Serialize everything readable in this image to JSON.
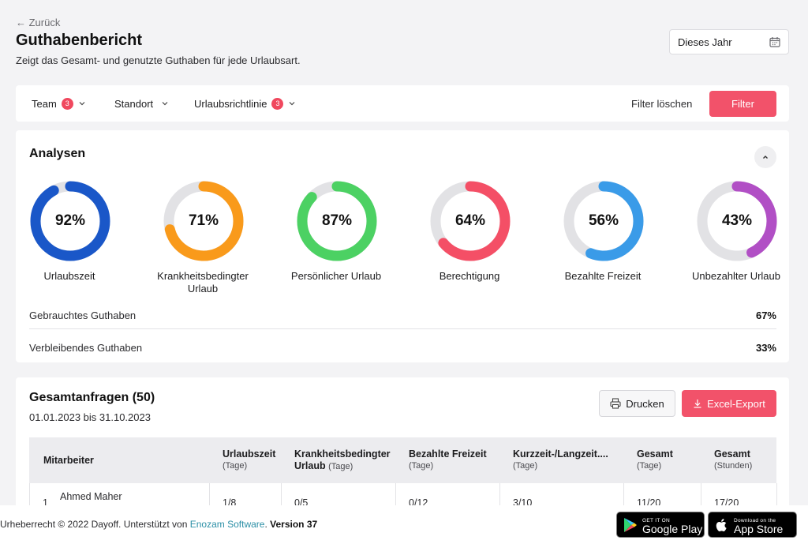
{
  "header": {
    "back_label": "← Zurück",
    "title": "Guthabenbericht",
    "subtitle": "Zeigt das Gesamt- und genutzte Guthaben für jede Urlaubsart.",
    "period_select": "Dieses Jahr"
  },
  "filters": {
    "team": {
      "label": "Team",
      "count": "3"
    },
    "standort": {
      "label": "Standort"
    },
    "policy": {
      "label": "Urlaubsrichtlinie",
      "count": "3"
    },
    "clear_label": "Filter löschen",
    "apply_label": "Filter"
  },
  "analytics": {
    "title": "Analysen",
    "donuts": [
      {
        "pct_value": 92,
        "pct": "92%",
        "label": "Urlaubszeit",
        "color": "#1a57c8"
      },
      {
        "pct_value": 71,
        "pct": "71%",
        "label": "Krankheitsbedingter Urlaub",
        "color": "#f99a1b"
      },
      {
        "pct_value": 87,
        "pct": "87%",
        "label": "Persönlicher Urlaub",
        "color": "#4cd163"
      },
      {
        "pct_value": 64,
        "pct": "64%",
        "label": "Berechtigung",
        "color": "#f44f66"
      },
      {
        "pct_value": 56,
        "pct": "56%",
        "label": "Bezahlte Freizeit",
        "color": "#3a9be8"
      },
      {
        "pct_value": 43,
        "pct": "43%",
        "label": "Unbezahlter Urlaub",
        "color": "#b14fc5"
      }
    ],
    "track_color": "#e2e2e5",
    "used_label": "Gebrauchtes Guthaben",
    "used_value": "67%",
    "remaining_label": "Verbleibendes Guthaben",
    "remaining_value": "33%"
  },
  "requests": {
    "title": "Gesamtanfragen (50)",
    "date_range": "01.01.2023 bis 31.10.2023",
    "print_label": "Drucken",
    "export_label": "Excel-Export",
    "columns": [
      {
        "label": "Mitarbeiter",
        "sub": ""
      },
      {
        "label": "Urlaubszeit",
        "sub": "(Tage)"
      },
      {
        "label": "Krankheitsbedingter Urlaub",
        "sub": "(Tage)"
      },
      {
        "label": "Bezahlte Freizeit",
        "sub": "(Tage)"
      },
      {
        "label": "Kurzzeit-/Langzeit....",
        "sub": "(Tage)"
      },
      {
        "label": "Gesamt",
        "sub": "(Tage)"
      },
      {
        "label": "Gesamt",
        "sub": "(Stunden)"
      }
    ],
    "rows": [
      {
        "index": "1",
        "name": "Ahmed Maher",
        "cells": [
          "1/8",
          "0/5",
          "0/12",
          "3/10",
          "11/20",
          "17/20"
        ]
      }
    ]
  },
  "footer": {
    "copyright": "Urheberrecht © 2022 Dayoff. Unterstützt von ",
    "company": "Enozam Software",
    "version": "Version 37",
    "google_small": "GET IT ON",
    "google_big": "Google Play",
    "apple_small": "Download on the",
    "apple_big": "App Store"
  }
}
